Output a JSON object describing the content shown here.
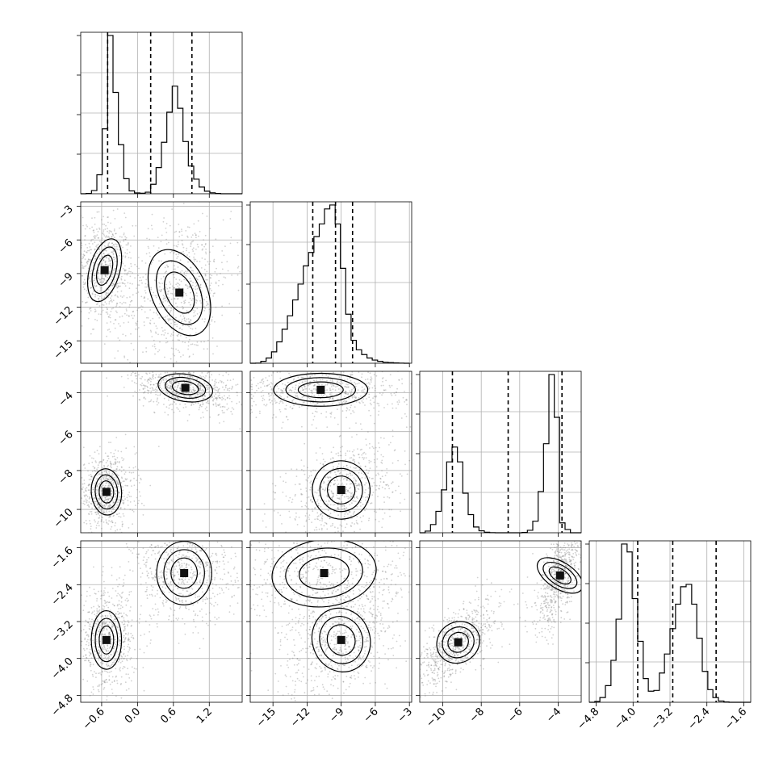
{
  "chart_data": {
    "type": "corner",
    "parameters": [
      {
        "xlim": [
          -0.95,
          1.75
        ],
        "ticks": [
          -0.6,
          0.0,
          0.6,
          1.2
        ],
        "tick_labels": [
          "−0.6",
          "0.0",
          "0.6",
          "1.2"
        ]
      },
      {
        "xlim": [
          -17.0,
          -2.8
        ],
        "ticks": [
          -15,
          -12,
          -9,
          -6,
          -3
        ],
        "tick_labels": [
          "−15",
          "−12",
          "−9",
          "−6",
          "−3"
        ]
      },
      {
        "xlim": [
          -11.2,
          -2.8
        ],
        "ticks": [
          -10,
          -8,
          -6,
          -4
        ],
        "tick_labels": [
          "−10",
          "−8",
          "−6",
          "−4"
        ]
      },
      {
        "xlim": [
          -4.95,
          -1.45
        ],
        "ticks": [
          -4.8,
          -4.0,
          -3.2,
          -2.4,
          -1.6
        ],
        "tick_labels": [
          "−4.8",
          "−4.0",
          "−3.2",
          "−2.4",
          "−1.6"
        ]
      }
    ],
    "y_axes": [
      null,
      {
        "ylim": [
          -17.0,
          -2.6
        ],
        "ticks": [
          -3,
          -6,
          -9,
          -12,
          -15
        ],
        "tick_labels": [
          "−3",
          "−6",
          "−9",
          "−12",
          "−15"
        ]
      },
      {
        "ylim": [
          -11.2,
          -2.9
        ],
        "ticks": [
          -4,
          -6,
          -8,
          -10
        ],
        "tick_labels": [
          "−4",
          "−6",
          "−8",
          "−10"
        ]
      },
      {
        "ylim": [
          -4.95,
          -1.45
        ],
        "ticks": [
          -1.6,
          -2.4,
          -3.2,
          -4.0,
          -4.8
        ],
        "tick_labels": [
          "−1.6",
          "−2.4",
          "−3.2",
          "−4.0",
          "−4.8"
        ]
      }
    ],
    "histograms": [
      {
        "bins": [
          -0.95,
          -0.86,
          -0.77,
          -0.68,
          -0.59,
          -0.5,
          -0.41,
          -0.32,
          -0.23,
          -0.14,
          -0.05,
          0.04,
          0.13,
          0.22,
          0.31,
          0.4,
          0.49,
          0.58,
          0.67,
          0.76,
          0.85,
          0.94,
          1.03,
          1.12,
          1.21,
          1.3,
          1.39,
          1.48,
          1.57,
          1.66,
          1.75
        ],
        "counts": [
          0,
          2,
          20,
          120,
          410,
          1000,
          640,
          310,
          95,
          18,
          5,
          3,
          10,
          60,
          165,
          325,
          515,
          680,
          540,
          330,
          175,
          92,
          42,
          16,
          6,
          2,
          0,
          0,
          0,
          0
        ],
        "quantiles": [
          -0.5,
          0.22,
          0.91
        ]
      },
      {
        "bins": [
          -17.0,
          -16.53,
          -16.07,
          -15.6,
          -15.13,
          -14.67,
          -14.2,
          -13.73,
          -13.27,
          -12.8,
          -12.33,
          -11.87,
          -11.4,
          -10.93,
          -10.47,
          -10.0,
          -9.53,
          -9.07,
          -8.6,
          -8.13,
          -7.67,
          -7.2,
          -6.73,
          -6.27,
          -5.8,
          -5.33,
          -4.87,
          -4.4,
          -3.93,
          -3.47,
          -3.0
        ],
        "counts": [
          0,
          1,
          12,
          33,
          72,
          135,
          215,
          300,
          400,
          500,
          615,
          700,
          800,
          880,
          975,
          1000,
          880,
          600,
          310,
          145,
          85,
          55,
          33,
          20,
          12,
          6,
          4,
          2,
          1,
          0
        ],
        "quantiles": [
          -11.5,
          -9.5,
          -8.0
        ]
      },
      {
        "bins": [
          -11.2,
          -10.92,
          -10.64,
          -10.36,
          -10.08,
          -9.8,
          -9.52,
          -9.24,
          -8.96,
          -8.68,
          -8.4,
          -8.12,
          -7.84,
          -7.56,
          -7.28,
          -7.0,
          -6.72,
          -6.44,
          -6.16,
          -5.88,
          -5.6,
          -5.32,
          -5.04,
          -4.76,
          -4.48,
          -4.2,
          -3.92,
          -3.64,
          -3.36,
          -3.08,
          -2.8
        ],
        "counts": [
          0,
          10,
          50,
          130,
          260,
          430,
          520,
          430,
          240,
          110,
          35,
          12,
          3,
          1,
          0,
          0,
          0,
          0,
          0,
          2,
          15,
          70,
          250,
          540,
          960,
          700,
          60,
          20,
          0,
          0
        ],
        "quantiles": [
          -9.5,
          -6.6,
          -3.8
        ]
      },
      {
        "bins": [
          -4.95,
          -4.83,
          -4.72,
          -4.6,
          -4.48,
          -4.37,
          -4.25,
          -4.13,
          -4.02,
          -3.9,
          -3.78,
          -3.67,
          -3.55,
          -3.43,
          -3.32,
          -3.2,
          -3.08,
          -2.97,
          -2.85,
          -2.73,
          -2.62,
          -2.5,
          -2.38,
          -2.27,
          -2.15,
          -2.03,
          -1.92,
          -1.8,
          -1.68,
          -1.57,
          -1.45
        ],
        "counts": [
          0,
          5,
          30,
          105,
          265,
          525,
          1000,
          950,
          655,
          385,
          150,
          70,
          75,
          185,
          305,
          465,
          620,
          730,
          745,
          620,
          405,
          195,
          80,
          30,
          8,
          2,
          0,
          0,
          0,
          0
        ],
        "quantiles": [
          -3.9,
          -3.14,
          -2.2
        ]
      }
    ],
    "blobs": {
      "1-0": [
        {
          "cx": -0.55,
          "cy": -8.7,
          "sx": 0.11,
          "sy": 1.1,
          "r": -0.15
        },
        {
          "cx": 0.7,
          "cy": -10.7,
          "sx": 0.2,
          "sy": 1.6,
          "r": 0.3
        }
      ],
      "2-0": [
        {
          "cx": 0.8,
          "cy": -3.75,
          "sx": 0.2,
          "sy": 0.28,
          "r": -0.35
        },
        {
          "cx": -0.52,
          "cy": -9.1,
          "sx": 0.11,
          "sy": 0.45,
          "r": 0.05
        }
      ],
      "3-0": [
        {
          "cx": -0.52,
          "cy": -3.6,
          "sx": 0.11,
          "sy": 0.24,
          "r": 0.0
        },
        {
          "cx": 0.78,
          "cy": -2.15,
          "sx": 0.2,
          "sy": 0.26,
          "r": 0.0
        }
      ],
      "2-1": [
        {
          "cx": -10.8,
          "cy": -3.85,
          "sx": 1.8,
          "sy": 0.32,
          "r": 0.0
        },
        {
          "cx": -9.0,
          "cy": -9.0,
          "sx": 1.1,
          "sy": 0.6,
          "r": 0.35
        }
      ],
      "3-1": [
        {
          "cx": -10.5,
          "cy": -2.15,
          "sx": 2.0,
          "sy": 0.28,
          "r": 0.2
        },
        {
          "cx": -9.0,
          "cy": -3.6,
          "sx": 1.1,
          "sy": 0.28,
          "r": 0.35
        }
      ],
      "3-2": [
        {
          "cx": -9.2,
          "cy": -3.65,
          "sx": 0.5,
          "sy": 0.22,
          "r": 0.7
        },
        {
          "cx": -3.9,
          "cy": -2.2,
          "sx": 0.3,
          "sy": 0.28,
          "r": 0.7
        }
      ]
    }
  }
}
